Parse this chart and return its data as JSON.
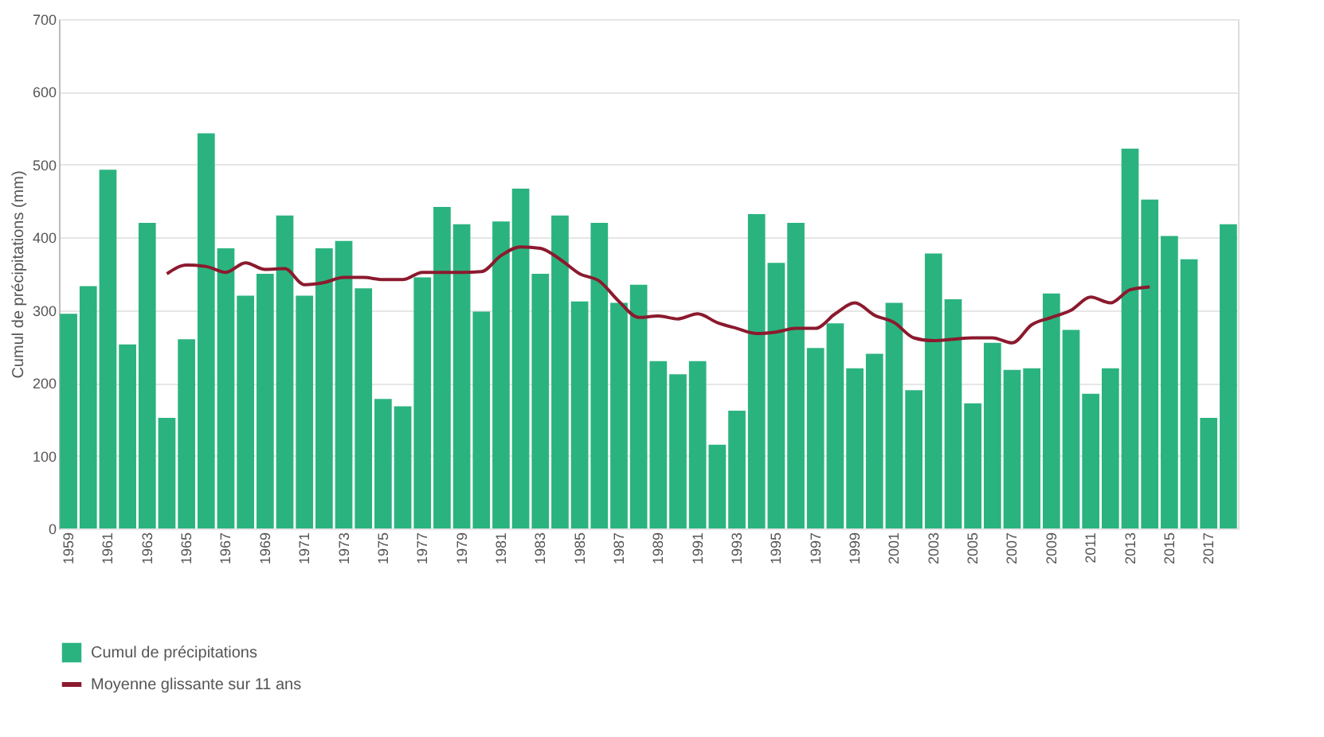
{
  "chart_data": {
    "type": "bar",
    "ylabel": "Cumul de précipitations (mm)",
    "categories": [
      "1959",
      null,
      "1961",
      null,
      "1963",
      null,
      "1965",
      null,
      "1967",
      null,
      "1969",
      null,
      "1971",
      null,
      "1973",
      null,
      "1975",
      null,
      "1977",
      null,
      "1979",
      null,
      "1981",
      null,
      "1983",
      null,
      "1985",
      null,
      "1987",
      null,
      "1989",
      null,
      "1991",
      null,
      "1993",
      null,
      "1995",
      null,
      "1997",
      null,
      "1999",
      null,
      "2001",
      null,
      "2003",
      null,
      "2005",
      null,
      "2007",
      null,
      "2009",
      null,
      "2011",
      null,
      "2013",
      null,
      "2015",
      null,
      "2017",
      null
    ],
    "series": [
      {
        "name": "Cumul de précipitations",
        "color": "#2bb37f",
        "values": [
          295,
          333,
          493,
          253,
          420,
          152,
          260,
          543,
          385,
          320,
          350,
          430,
          320,
          385,
          395,
          330,
          178,
          168,
          345,
          442,
          418,
          298,
          422,
          467,
          350,
          430,
          312,
          420,
          310,
          335,
          230,
          212,
          230,
          115,
          162,
          432,
          365,
          420,
          248,
          282,
          220,
          240,
          310,
          190,
          378,
          315,
          172,
          255,
          218,
          220,
          323,
          273,
          185,
          220,
          522,
          452,
          402,
          370,
          152,
          418
        ]
      },
      {
        "name": "Moyenne glissante sur 11 ans",
        "type": "line",
        "color": "#8b1a2e",
        "values": [
          null,
          null,
          null,
          null,
          null,
          350,
          362,
          360,
          352,
          365,
          356,
          357,
          335,
          338,
          345,
          345,
          342,
          342,
          352,
          352,
          352,
          353,
          375,
          387,
          385,
          370,
          350,
          340,
          312,
          290,
          292,
          288,
          295,
          283,
          275,
          268,
          270,
          275,
          275,
          295,
          310,
          293,
          283,
          262,
          258,
          260,
          262,
          262,
          255,
          280,
          290,
          300,
          318,
          310,
          328,
          332,
          null,
          null,
          null,
          null
        ]
      }
    ],
    "ylim": [
      0,
      700
    ],
    "yticks": [
      0,
      100,
      200,
      300,
      400,
      500,
      600,
      700
    ],
    "grid": "y",
    "legend": "bottom left"
  }
}
